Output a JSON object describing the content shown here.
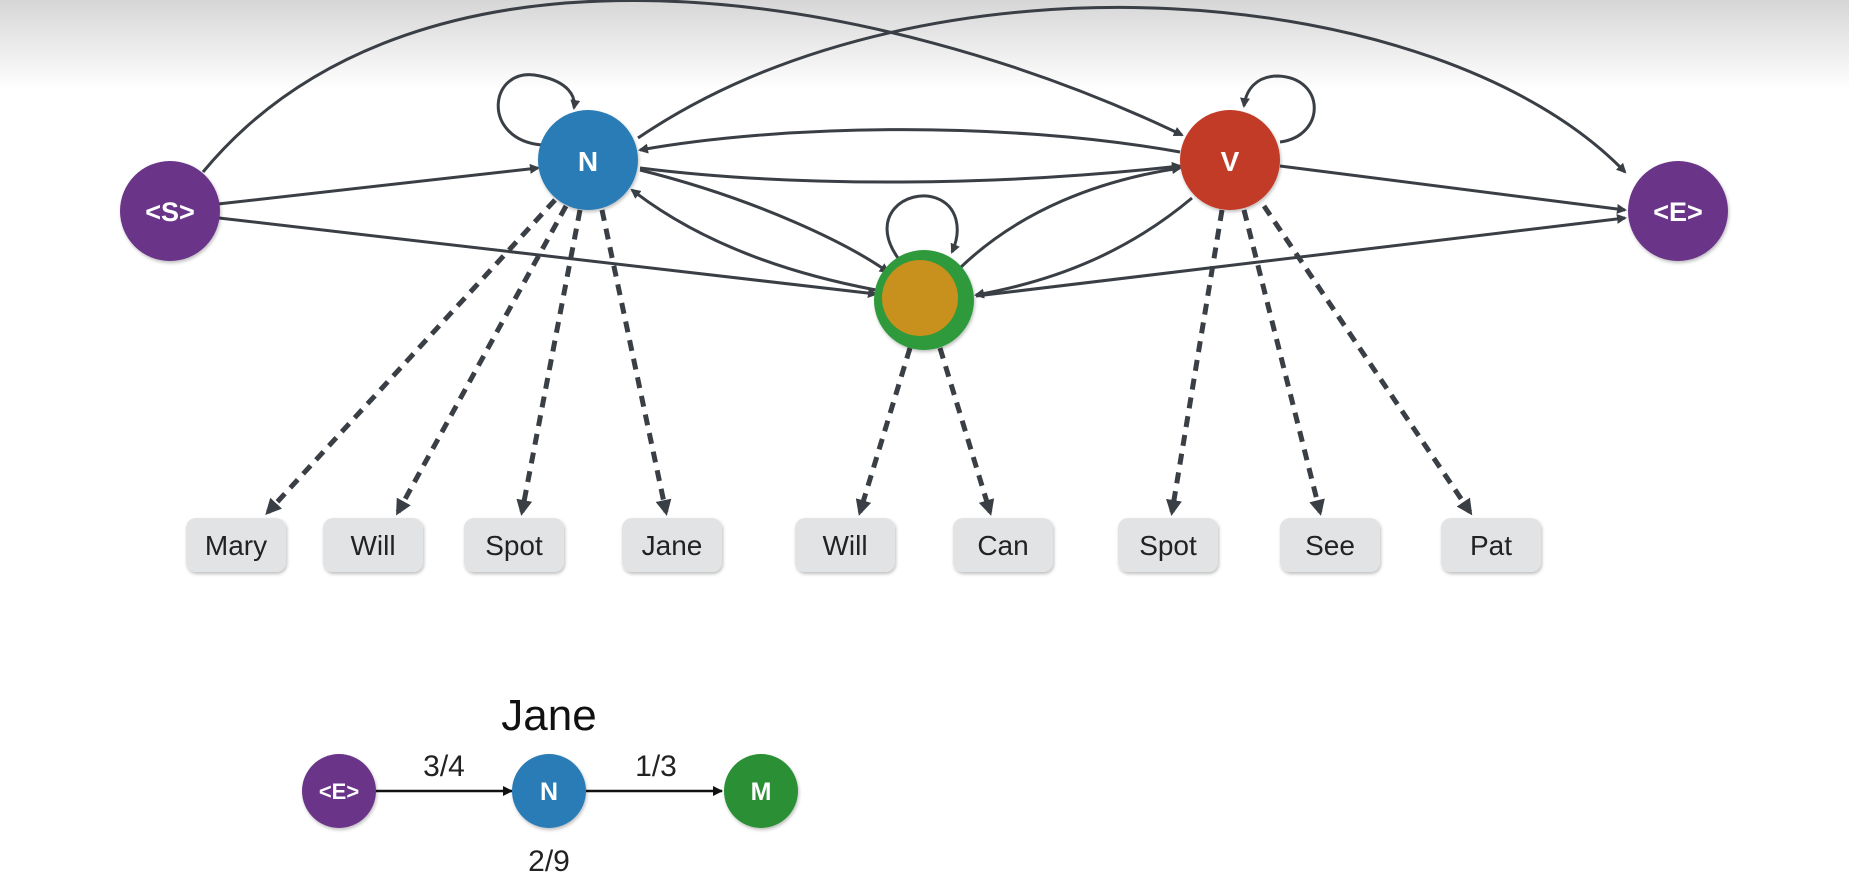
{
  "colors": {
    "start": "#6b3589",
    "end": "#6b3589",
    "noun": "#2c7bb6",
    "verb": "#c13b27",
    "modal_ring": "#2f9a3a",
    "modal_fill": "#c8901a",
    "modal_small": "#2a8f35",
    "edge": "#3a3f45",
    "word_box": "#e2e3e4"
  },
  "graph": {
    "nodes": {
      "start": {
        "label": "<S>"
      },
      "noun": {
        "label": "N"
      },
      "verb": {
        "label": "V"
      },
      "modal": {
        "label": ""
      },
      "end": {
        "label": "<E>"
      }
    },
    "words": {
      "noun": [
        "Mary",
        "Will",
        "Spot",
        "Jane"
      ],
      "modal": [
        "Will",
        "Can"
      ],
      "verb": [
        "Spot",
        "See",
        "Pat"
      ]
    }
  },
  "example": {
    "word": "Jane",
    "nodes": {
      "left": "<E>",
      "middle": "N",
      "right": "M"
    },
    "left_prob": "3/4",
    "right_prob": "1/3",
    "emission_prob": "2/9"
  }
}
